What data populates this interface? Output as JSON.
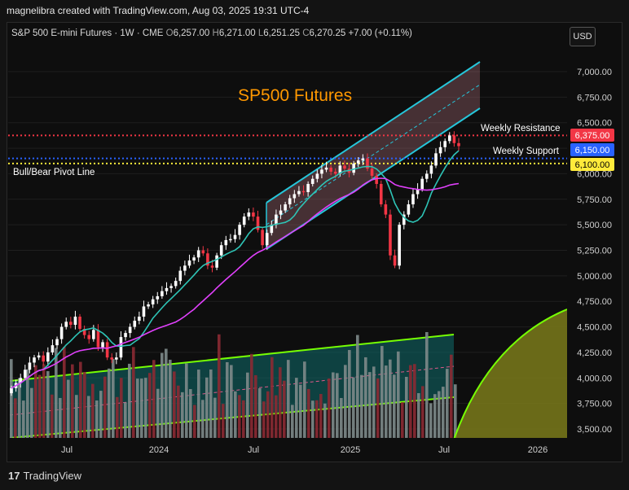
{
  "top_caption": "magnelibra created with TradingView.com, Aug 03, 2025 19:31 UTC-4",
  "header": {
    "symbol": "S&P 500 E-mini Futures · 1W · CME",
    "open": "6,257.00",
    "high": "6,271.00",
    "low": "6,251.25",
    "close": "6,270.25",
    "change": "+7.00 (+0.11%)"
  },
  "currency_button": "USD",
  "footer": "TradingView",
  "chart_data": {
    "type": "candlestick",
    "title": "SP500 Futures",
    "xlabel": "",
    "ylabel": "",
    "y_ticks": [
      "7,000.00",
      "6,750.00",
      "6,500.00",
      "6,250.00",
      "6,000.00",
      "5,750.00",
      "5,500.00",
      "5,250.00",
      "5,000.00",
      "4,750.00",
      "4,500.00",
      "4,250.00",
      "4,000.00",
      "3,750.00",
      "3,500.00"
    ],
    "x_ticks": [
      "Jul",
      "2024",
      "Jul",
      "2025",
      "Jul",
      "2026"
    ],
    "ylim": [
      3400,
      7450
    ],
    "horizontal_levels": [
      {
        "label": "Weekly Resistance",
        "price_label": "6,375.00",
        "value": 6375,
        "color": "#f23645"
      },
      {
        "label": "Weekly Support",
        "price_label": "6,150.00",
        "value": 6150,
        "color": "#2962ff"
      },
      {
        "label": "Bull/Bear Pivot Line",
        "price_label": "6,100.00",
        "value": 6100,
        "color": "#ffeb3b"
      }
    ],
    "annotations": {
      "resistance": "Weekly Resistance",
      "support": "Weekly Support",
      "pivot": "Bull/Bear Pivot Line"
    },
    "weekly_closes": [
      3900,
      3950,
      4000,
      4080,
      4150,
      4200,
      4220,
      4160,
      4250,
      4320,
      4380,
      4500,
      4550,
      4520,
      4600,
      4480,
      4420,
      4380,
      4470,
      4300,
      4350,
      4200,
      4180,
      4200,
      4400,
      4440,
      4500,
      4560,
      4600,
      4700,
      4720,
      4770,
      4800,
      4850,
      4880,
      4900,
      4950,
      5050,
      5100,
      5150,
      5180,
      5250,
      5220,
      5100,
      5080,
      5200,
      5300,
      5350,
      5360,
      5400,
      5500,
      5580,
      5620,
      5580,
      5450,
      5300,
      5420,
      5500,
      5600,
      5640,
      5700,
      5760,
      5800,
      5830,
      5820,
      5900,
      5950,
      6000,
      6040,
      6060,
      6020,
      6000,
      6080,
      6050,
      6010,
      6100,
      6130,
      6150,
      6050,
      5980,
      5900,
      5700,
      5600,
      5200,
      5100,
      5500,
      5600,
      5700,
      5800,
      5850,
      5950,
      6000,
      6080,
      6200,
      6260,
      6320,
      6375,
      6300,
      6270
    ],
    "volume_series": [
      {
        "name": "Volume",
        "note": "bars"
      }
    ],
    "moving_averages": [
      {
        "color": "#2ec4b6"
      },
      {
        "color": "#e040fb"
      }
    ]
  },
  "colors": {
    "up": "#ffffff",
    "down": "#f23645",
    "channel": "#26c6da",
    "title": "#ff9800",
    "volume_channel": "#76ff03"
  }
}
